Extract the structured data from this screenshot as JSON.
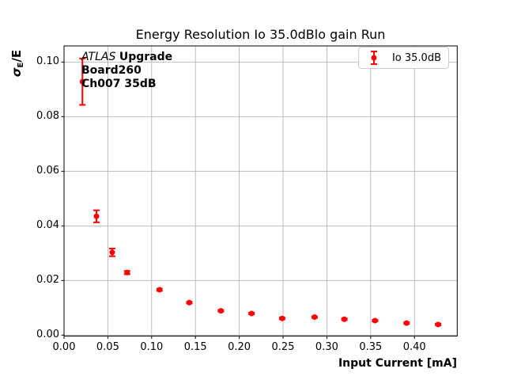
{
  "chart_data": {
    "type": "scatter",
    "title": "Energy Resolution Io 35.0dBlo gain Run",
    "xlabel": "Input Current [mA]",
    "ylabel": "σE/E",
    "ylabel_parts": {
      "sigma": "σ",
      "sub": "E",
      "rest": "/E"
    },
    "legend": {
      "label": "Io 35.0dB",
      "position": "upper right"
    },
    "annotation": {
      "line1_italic": "ATLAS",
      "line1_bold": "Upgrade",
      "line2": "Board260",
      "line3": "Ch007 35dB"
    },
    "series": [
      {
        "name": "Io 35.0dB",
        "x": [
          0.021,
          0.037,
          0.055,
          0.072,
          0.109,
          0.143,
          0.179,
          0.214,
          0.249,
          0.286,
          0.32,
          0.355,
          0.391,
          0.427
        ],
        "y": [
          0.0928,
          0.0435,
          0.0303,
          0.0229,
          0.0166,
          0.0119,
          0.0089,
          0.0079,
          0.0061,
          0.0066,
          0.0058,
          0.0053,
          0.0044,
          0.0039
        ],
        "yerr": [
          0.0085,
          0.0022,
          0.0014,
          0.0006,
          0.0004,
          0.0003,
          0.0003,
          0.0003,
          0.0003,
          0.0003,
          0.0003,
          0.0003,
          0.0003,
          0.0003
        ]
      }
    ],
    "xlim": [
      0.0,
      0.4488
    ],
    "ylim": [
      -0.00035,
      0.1059
    ],
    "xticks": [
      0.0,
      0.05,
      0.1,
      0.15,
      0.2,
      0.25,
      0.3,
      0.35,
      0.4
    ],
    "xtick_labels": [
      "0.00",
      "0.05",
      "0.10",
      "0.15",
      "0.20",
      "0.25",
      "0.30",
      "0.35",
      "0.40"
    ],
    "yticks": [
      0.0,
      0.02,
      0.04,
      0.06,
      0.08,
      0.1
    ],
    "ytick_labels": [
      "0.00",
      "0.02",
      "0.04",
      "0.06",
      "0.08",
      "0.10"
    ],
    "grid": true,
    "colors": {
      "series": "#ff0000",
      "grid": "#b0b0b0",
      "spine": "#000000",
      "legend_border": "#cccccc",
      "text": "#000000"
    }
  }
}
